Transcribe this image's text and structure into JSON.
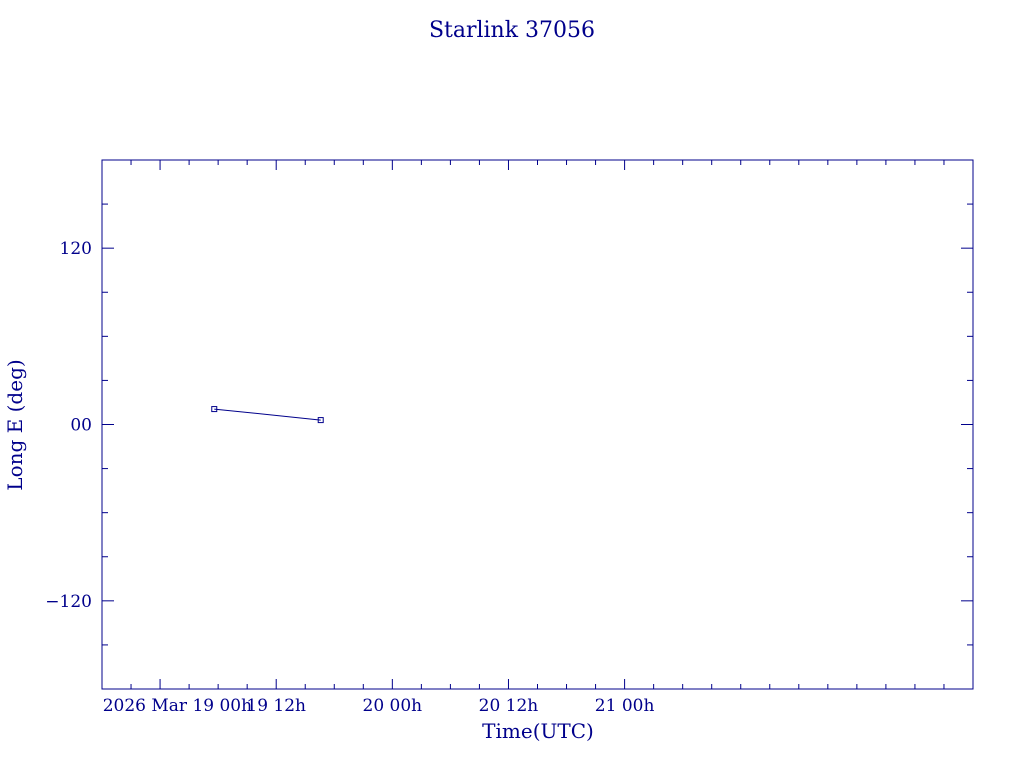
{
  "chart_data": {
    "type": "line",
    "title": "Starlink 37056",
    "xlabel": "Time(UTC)",
    "ylabel": "Long E (deg)",
    "x_axis": {
      "unit": "hours since 2026-03-19 00:00 UTC",
      "range": [
        -6,
        84
      ],
      "major_ticks": [
        {
          "value": 0,
          "label": "2026 Mar 19  00h"
        },
        {
          "value": 12,
          "label": "19  12h"
        },
        {
          "value": 24,
          "label": "20  00h"
        },
        {
          "value": 36,
          "label": "20  12h"
        },
        {
          "value": 48,
          "label": "21  00h"
        }
      ],
      "minor_step": 3
    },
    "y_axis": {
      "range": [
        -180,
        180
      ],
      "major_ticks": [
        {
          "value": -120,
          "label": "−120"
        },
        {
          "value": 0,
          "label": "00"
        },
        {
          "value": 120,
          "label": "120"
        }
      ],
      "minor_step": 30
    },
    "grid": false,
    "series": [
      {
        "color": "#00008b",
        "points": [
          {
            "x": 5.6,
            "y": 10.5
          },
          {
            "x": 16.6,
            "y": 3.0
          }
        ]
      }
    ]
  }
}
